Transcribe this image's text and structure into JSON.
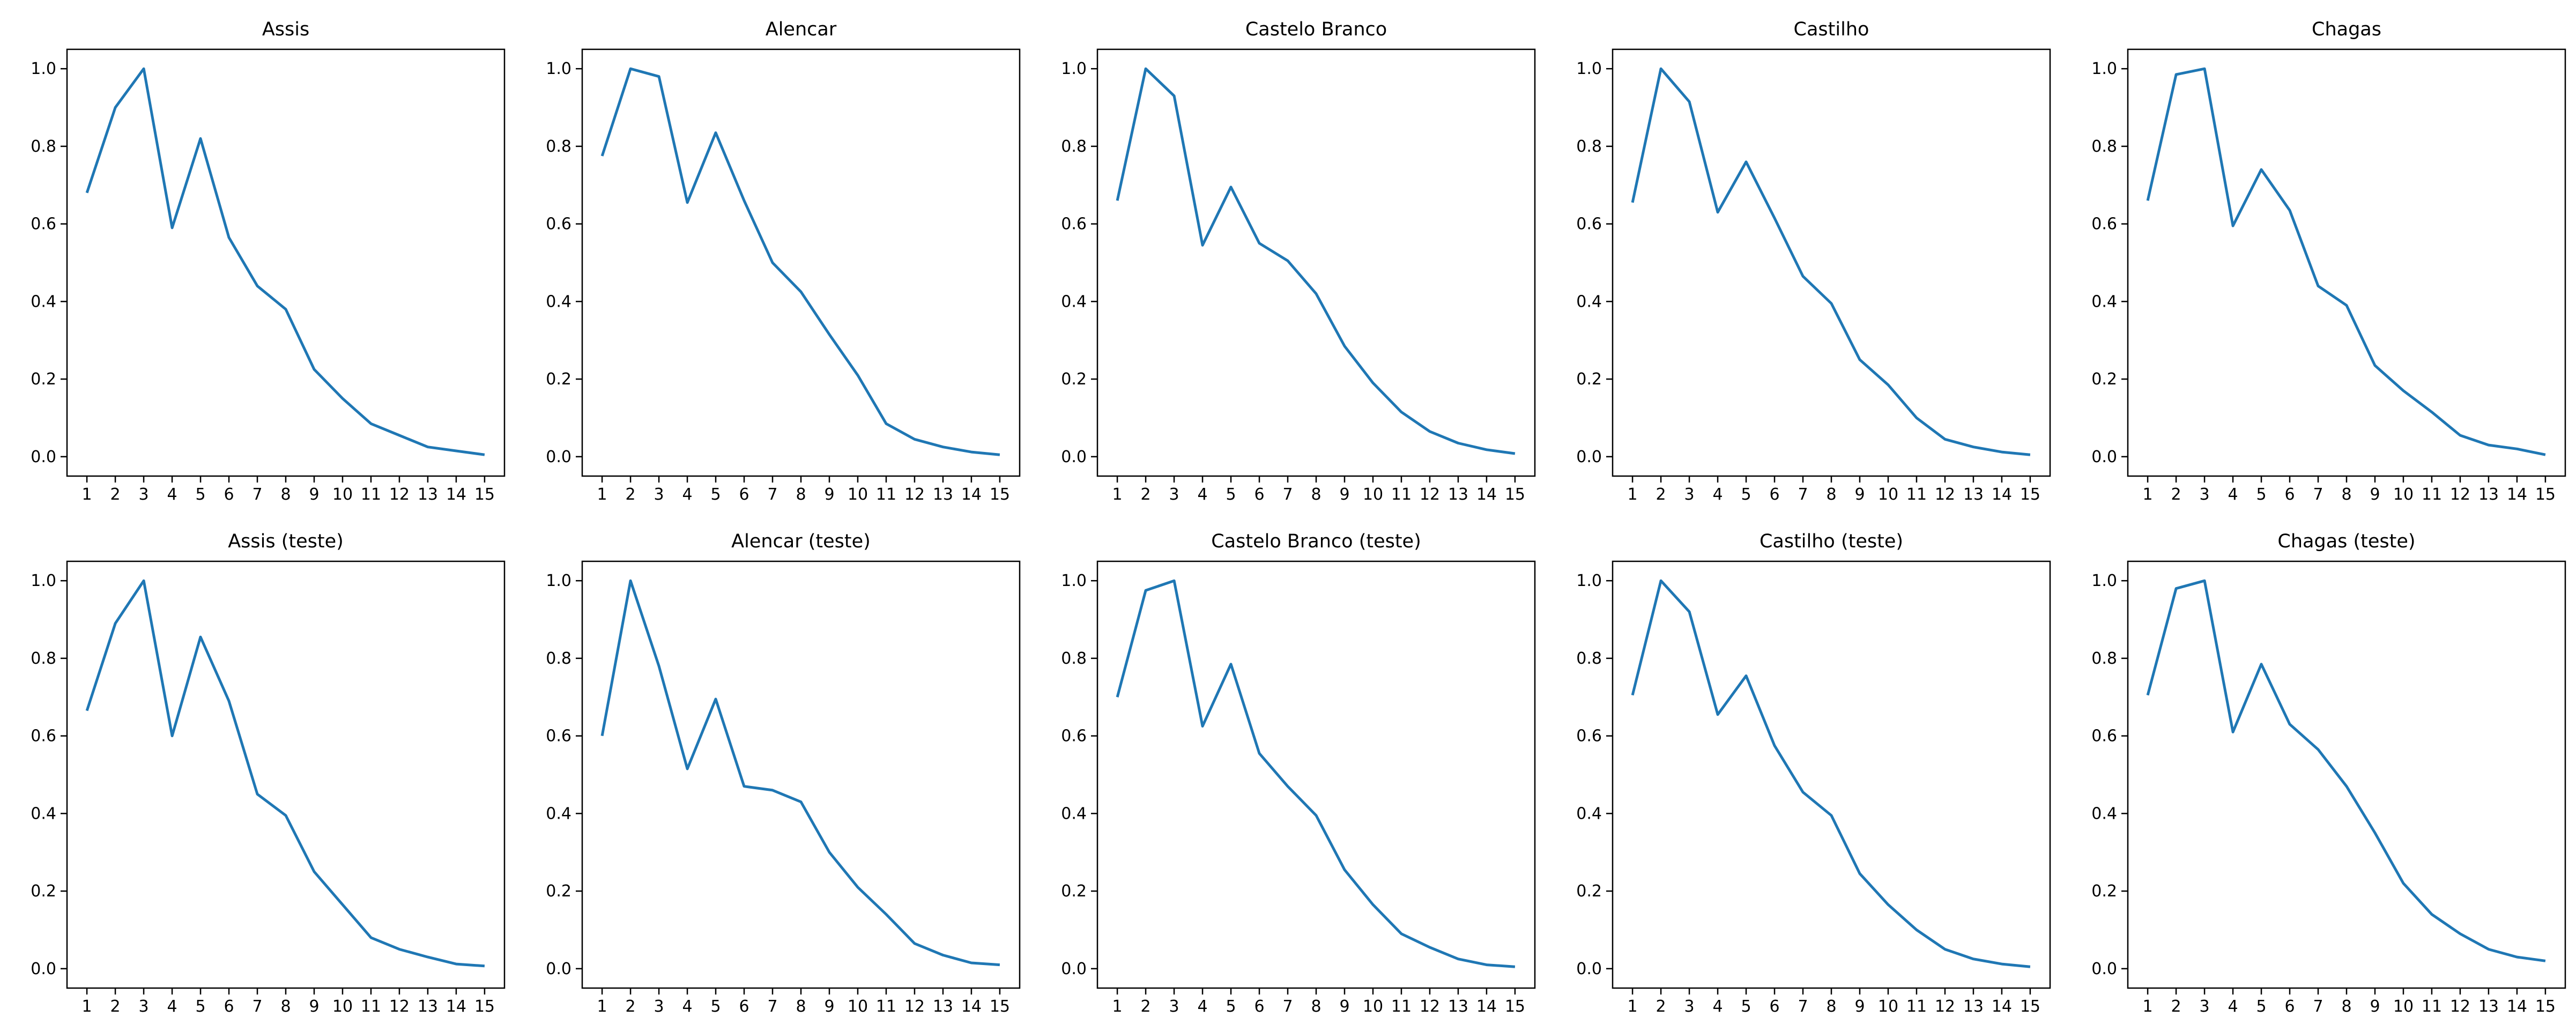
{
  "page": {
    "background": "#ffffff",
    "grid_rows": 2,
    "grid_cols": 5
  },
  "axes": {
    "xlim": [
      0.3,
      15.7
    ],
    "ylim": [
      -0.05,
      1.05
    ],
    "xticks": [
      1,
      2,
      3,
      4,
      5,
      6,
      7,
      8,
      9,
      10,
      11,
      12,
      13,
      14,
      15
    ],
    "xtick_labels": [
      "1",
      "2",
      "3",
      "4",
      "5",
      "6",
      "7",
      "8",
      "9",
      "10",
      "11",
      "12",
      "13",
      "14",
      "15"
    ],
    "yticks": [
      0.0,
      0.2,
      0.4,
      0.6,
      0.8,
      1.0
    ],
    "ytick_labels": [
      "0.0",
      "0.2",
      "0.4",
      "0.6",
      "0.8",
      "1.0"
    ],
    "grid": false,
    "legend": "none",
    "line_color": "#1f77b4",
    "spine_color": "#000000",
    "tick_color": "#000000",
    "tick_label_color": "#000000",
    "title_color": "#000000"
  },
  "chart_data": [
    {
      "type": "line",
      "title": "Assis",
      "x": [
        1,
        2,
        3,
        4,
        5,
        6,
        7,
        8,
        9,
        10,
        11,
        12,
        13,
        14,
        15
      ],
      "values": [
        0.68,
        0.9,
        1.0,
        0.59,
        0.82,
        0.565,
        0.44,
        0.38,
        0.225,
        0.15,
        0.085,
        0.055,
        0.025,
        0.015,
        0.005
      ]
    },
    {
      "type": "line",
      "title": "Alencar",
      "x": [
        1,
        2,
        3,
        4,
        5,
        6,
        7,
        8,
        9,
        10,
        11,
        12,
        13,
        14,
        15
      ],
      "values": [
        0.775,
        1.0,
        0.98,
        0.655,
        0.835,
        0.66,
        0.5,
        0.425,
        0.315,
        0.21,
        0.085,
        0.045,
        0.025,
        0.012,
        0.005
      ]
    },
    {
      "type": "line",
      "title": "Castelo Branco",
      "x": [
        1,
        2,
        3,
        4,
        5,
        6,
        7,
        8,
        9,
        10,
        11,
        12,
        13,
        14,
        15
      ],
      "values": [
        0.66,
        1.0,
        0.93,
        0.545,
        0.695,
        0.55,
        0.505,
        0.42,
        0.285,
        0.19,
        0.115,
        0.065,
        0.035,
        0.018,
        0.008
      ]
    },
    {
      "type": "line",
      "title": "Castilho",
      "x": [
        1,
        2,
        3,
        4,
        5,
        6,
        7,
        8,
        9,
        10,
        11,
        12,
        13,
        14,
        15
      ],
      "values": [
        0.655,
        1.0,
        0.915,
        0.63,
        0.76,
        0.615,
        0.465,
        0.395,
        0.25,
        0.185,
        0.1,
        0.045,
        0.025,
        0.012,
        0.005
      ]
    },
    {
      "type": "line",
      "title": "Chagas",
      "x": [
        1,
        2,
        3,
        4,
        5,
        6,
        7,
        8,
        9,
        10,
        11,
        12,
        13,
        14,
        15
      ],
      "values": [
        0.66,
        0.985,
        1.0,
        0.595,
        0.74,
        0.635,
        0.44,
        0.39,
        0.235,
        0.17,
        0.115,
        0.055,
        0.03,
        0.02,
        0.005
      ]
    },
    {
      "type": "line",
      "title": "Assis (teste)",
      "x": [
        1,
        2,
        3,
        4,
        5,
        6,
        7,
        8,
        9,
        10,
        11,
        12,
        13,
        14,
        15
      ],
      "values": [
        0.665,
        0.89,
        1.0,
        0.6,
        0.855,
        0.69,
        0.45,
        0.395,
        0.25,
        0.165,
        0.08,
        0.05,
        0.03,
        0.012,
        0.007
      ]
    },
    {
      "type": "line",
      "title": "Alencar (teste)",
      "x": [
        1,
        2,
        3,
        4,
        5,
        6,
        7,
        8,
        9,
        10,
        11,
        12,
        13,
        14,
        15
      ],
      "values": [
        0.6,
        1.0,
        0.78,
        0.515,
        0.695,
        0.47,
        0.46,
        0.43,
        0.3,
        0.21,
        0.14,
        0.065,
        0.035,
        0.015,
        0.01
      ]
    },
    {
      "type": "line",
      "title": "Castelo Branco (teste)",
      "x": [
        1,
        2,
        3,
        4,
        5,
        6,
        7,
        8,
        9,
        10,
        11,
        12,
        13,
        14,
        15
      ],
      "values": [
        0.7,
        0.975,
        1.0,
        0.625,
        0.785,
        0.555,
        0.47,
        0.395,
        0.255,
        0.165,
        0.09,
        0.055,
        0.025,
        0.01,
        0.005
      ]
    },
    {
      "type": "line",
      "title": "Castilho (teste)",
      "x": [
        1,
        2,
        3,
        4,
        5,
        6,
        7,
        8,
        9,
        10,
        11,
        12,
        13,
        14,
        15
      ],
      "values": [
        0.705,
        1.0,
        0.92,
        0.655,
        0.755,
        0.575,
        0.455,
        0.395,
        0.245,
        0.165,
        0.1,
        0.05,
        0.025,
        0.012,
        0.005
      ]
    },
    {
      "type": "line",
      "title": "Chagas (teste)",
      "x": [
        1,
        2,
        3,
        4,
        5,
        6,
        7,
        8,
        9,
        10,
        11,
        12,
        13,
        14,
        15
      ],
      "values": [
        0.705,
        0.98,
        1.0,
        0.61,
        0.785,
        0.63,
        0.565,
        0.47,
        0.35,
        0.22,
        0.14,
        0.09,
        0.05,
        0.03,
        0.02
      ]
    }
  ]
}
